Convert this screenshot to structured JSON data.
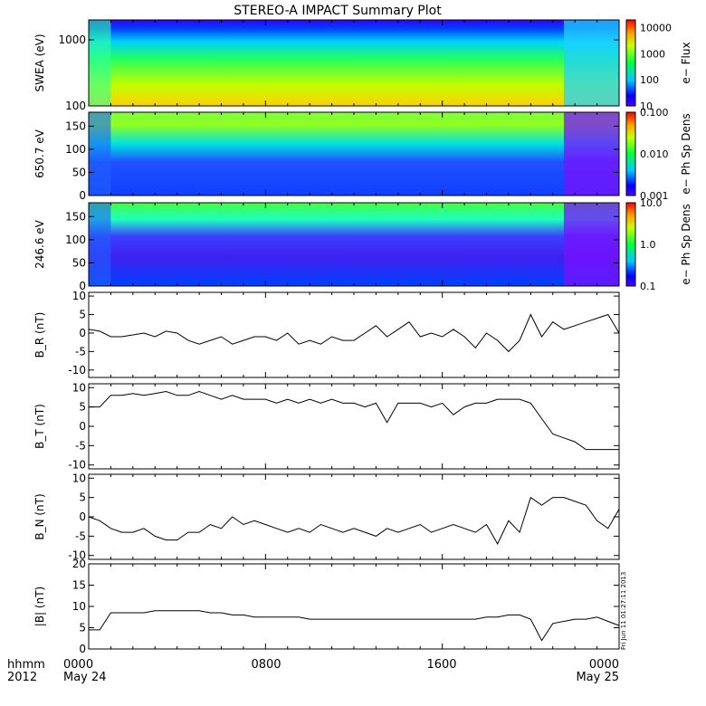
{
  "title": "STEREO-A IMPACT Summary Plot",
  "footer": {
    "row1_label": "hhmm",
    "row2_label": "2012",
    "ticks": [
      "0000",
      "0800",
      "1600",
      "0000"
    ],
    "dates": [
      "May 24",
      "",
      "",
      "May 25"
    ]
  },
  "side_stamp": "Fri Jun 11 01:27:11 2013",
  "chart_data": [
    {
      "type": "heatmap",
      "panel": "swea-pad",
      "ylabel": "SWEA (eV)",
      "ylim": [
        100,
        2000
      ],
      "y_scale": "log",
      "yticks": [
        100,
        1000
      ],
      "ytick_labels": [
        "100",
        "1000"
      ],
      "colorbar": {
        "label": "e− Flux",
        "scale": "log",
        "range": [
          10,
          20000
        ],
        "ticks": [
          10,
          100,
          1000,
          10000
        ],
        "tick_labels": [
          "10",
          "100",
          "1000",
          "10000"
        ]
      },
      "description_regions": [
        {
          "x_hours": [
            0,
            21.5
          ],
          "low_energy_flux": "high",
          "high_energy_flux": "low"
        },
        {
          "x_hours": [
            21.5,
            24
          ],
          "low_energy_flux": "reduced",
          "high_energy_flux": "low"
        }
      ]
    },
    {
      "type": "heatmap",
      "panel": "pad-650",
      "ylabel": "650.7 eV",
      "ylim": [
        0,
        180
      ],
      "yticks": [
        0,
        50,
        100,
        150
      ],
      "colorbar": {
        "label": "e− Ph Sp Dens",
        "scale": "log",
        "range": [
          0.001,
          0.1
        ],
        "ticks": [
          0.001,
          0.01,
          0.1
        ],
        "tick_labels": [
          "0.001",
          "0.010",
          "0.100"
        ]
      }
    },
    {
      "type": "heatmap",
      "panel": "pad-246",
      "ylabel": "246.6 eV",
      "ylim": [
        0,
        180
      ],
      "yticks": [
        0,
        50,
        100,
        150
      ],
      "colorbar": {
        "label": "e− Ph Sp Dens",
        "scale": "log",
        "range": [
          0.1,
          10
        ],
        "ticks": [
          0.1,
          1,
          10
        ],
        "tick_labels": [
          "0.1",
          "1.0",
          "10.0"
        ]
      }
    },
    {
      "type": "line",
      "panel": "br",
      "ylabel": "B_R (nT)",
      "ylim": [
        -12,
        11
      ],
      "yticks": [
        -10,
        -5,
        0,
        5,
        10
      ],
      "x_hours": [
        0,
        0.5,
        1,
        1.5,
        2,
        2.5,
        3,
        3.5,
        4,
        4.5,
        5,
        5.5,
        6,
        6.5,
        7,
        7.5,
        8,
        8.5,
        9,
        9.5,
        10,
        10.5,
        11,
        11.5,
        12,
        12.5,
        13,
        13.5,
        14,
        14.5,
        15,
        15.5,
        16,
        16.5,
        17,
        17.5,
        18,
        18.5,
        19,
        19.5,
        20,
        20.5,
        21,
        21.5,
        22,
        22.5,
        23,
        23.5,
        24
      ],
      "values": [
        1,
        0.5,
        -1,
        -1,
        -0.5,
        0,
        -1,
        0.5,
        0,
        -2,
        -3,
        -2,
        -1,
        -3,
        -2,
        -1,
        -1,
        -2,
        0,
        -3,
        -2,
        -3,
        -1,
        -2,
        -2,
        0,
        2,
        -1,
        1,
        3,
        -1,
        0,
        -1,
        1,
        -1,
        -4,
        0,
        -2,
        -5,
        -2,
        5,
        -1,
        3,
        1,
        2,
        3,
        4,
        5,
        0
      ]
    },
    {
      "type": "line",
      "panel": "bt",
      "ylabel": "B_T (nT)",
      "ylim": [
        -11,
        11
      ],
      "yticks": [
        -10,
        -5,
        0,
        5,
        10
      ],
      "x_hours": [
        0,
        0.5,
        1,
        1.5,
        2,
        2.5,
        3,
        3.5,
        4,
        4.5,
        5,
        5.5,
        6,
        6.5,
        7,
        7.5,
        8,
        8.5,
        9,
        9.5,
        10,
        10.5,
        11,
        11.5,
        12,
        12.5,
        13,
        13.5,
        14,
        14.5,
        15,
        15.5,
        16,
        16.5,
        17,
        17.5,
        18,
        18.5,
        19,
        19.5,
        20,
        20.5,
        21,
        21.5,
        22,
        22.5,
        23,
        23.5,
        24
      ],
      "values": [
        5,
        5,
        8,
        8,
        8.5,
        8,
        8.5,
        9,
        8,
        8,
        9,
        8,
        7,
        8,
        7,
        7,
        7,
        6,
        7,
        6,
        7,
        6,
        7,
        6,
        6,
        5,
        6,
        1,
        6,
        6,
        6,
        5,
        6,
        3,
        5,
        6,
        6,
        7,
        7,
        7,
        6,
        2,
        -2,
        -3,
        -4,
        -6,
        -6,
        -6,
        -6
      ]
    },
    {
      "type": "line",
      "panel": "bn",
      "ylabel": "B_N (nT)",
      "ylim": [
        -11,
        11
      ],
      "yticks": [
        -10,
        -5,
        0,
        5,
        10
      ],
      "x_hours": [
        0,
        0.5,
        1,
        1.5,
        2,
        2.5,
        3,
        3.5,
        4,
        4.5,
        5,
        5.5,
        6,
        6.5,
        7,
        7.5,
        8,
        8.5,
        9,
        9.5,
        10,
        10.5,
        11,
        11.5,
        12,
        12.5,
        13,
        13.5,
        14,
        14.5,
        15,
        15.5,
        16,
        16.5,
        17,
        17.5,
        18,
        18.5,
        19,
        19.5,
        20,
        20.5,
        21,
        21.5,
        22,
        22.5,
        23,
        23.5,
        24
      ],
      "values": [
        0,
        -1,
        -3,
        -4,
        -4,
        -3,
        -5,
        -6,
        -6,
        -4,
        -4,
        -2,
        -3,
        0,
        -2,
        -1,
        -2,
        -3,
        -4,
        -3,
        -4,
        -2,
        -3,
        -4,
        -3,
        -4,
        -5,
        -3,
        -4,
        -3,
        -2,
        -4,
        -3,
        -2,
        -3,
        -4,
        -2,
        -7,
        -1,
        -4,
        5,
        3,
        5,
        5,
        4,
        3,
        -1,
        -3,
        2
      ]
    },
    {
      "type": "line",
      "panel": "bmag",
      "ylabel": "|B| (nT)",
      "ylim": [
        0,
        20
      ],
      "yticks": [
        0,
        5,
        10,
        15,
        20
      ],
      "x_hours": [
        0,
        0.5,
        1,
        1.5,
        2,
        2.5,
        3,
        3.5,
        4,
        4.5,
        5,
        5.5,
        6,
        6.5,
        7,
        7.5,
        8,
        8.5,
        9,
        9.5,
        10,
        10.5,
        11,
        11.5,
        12,
        12.5,
        13,
        13.5,
        14,
        14.5,
        15,
        15.5,
        16,
        16.5,
        17,
        17.5,
        18,
        18.5,
        19,
        19.5,
        20,
        20.5,
        21,
        21.5,
        22,
        22.5,
        23,
        23.5,
        24
      ],
      "values": [
        4.5,
        4.5,
        8.5,
        8.5,
        8.5,
        8.5,
        9,
        9,
        9,
        9,
        9,
        8.5,
        8.5,
        8,
        8,
        7.5,
        7.5,
        7.5,
        7.5,
        7.5,
        7,
        7,
        7,
        7,
        7,
        7,
        7,
        7,
        7,
        7,
        7,
        7,
        7,
        7,
        7,
        7,
        7.5,
        7.5,
        8,
        8,
        7,
        2,
        6,
        6.5,
        7,
        7,
        7.5,
        6.5,
        5.5
      ]
    }
  ]
}
